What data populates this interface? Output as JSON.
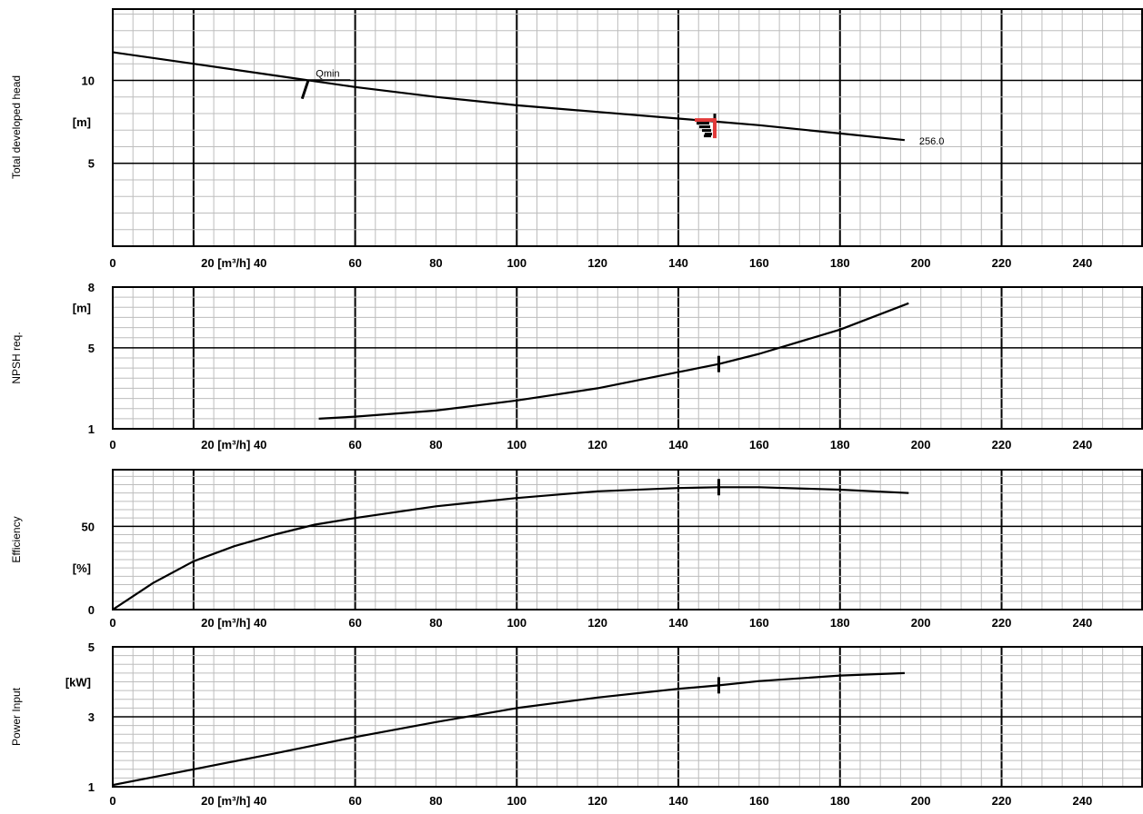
{
  "chart_data": [
    {
      "type": "line",
      "title": "Total developed head",
      "unit_label": "[m]",
      "y_ticks": [
        "10",
        "5"
      ],
      "ylim": [
        0,
        14.3
      ],
      "x_ticks": [
        "0",
        "20 [m³/h] 40",
        "60",
        "80",
        "100",
        "120",
        "140",
        "160",
        "180",
        "200",
        "220",
        "240"
      ],
      "xlim": [
        0,
        255
      ],
      "grid": true,
      "series": [
        {
          "name": "256.0",
          "x": [
            0,
            20,
            40,
            60,
            80,
            100,
            120,
            140,
            150,
            160,
            180,
            196
          ],
          "y": [
            11.7,
            11.0,
            10.3,
            9.6,
            9.0,
            8.5,
            8.1,
            7.7,
            7.5,
            7.3,
            6.8,
            6.4
          ]
        }
      ],
      "annotations": [
        {
          "text": "Qmin",
          "x": 48,
          "y": 9.55
        },
        {
          "text": "256.0",
          "x": 196,
          "y": 6.4
        }
      ],
      "operating_point": {
        "x": 149,
        "y": 7.5
      }
    },
    {
      "type": "line",
      "title": "NPSH req.",
      "unit_label": "[m]",
      "y_ticks": [
        "8",
        "5",
        "1"
      ],
      "ylim": [
        1,
        8
      ],
      "x_ticks": [
        "0",
        "20 [m³/h] 40",
        "60",
        "80",
        "100",
        "120",
        "140",
        "160",
        "180",
        "200",
        "220",
        "240"
      ],
      "xlim": [
        0,
        255
      ],
      "grid": true,
      "series": [
        {
          "name": "",
          "x": [
            51,
            60,
            80,
            100,
            120,
            140,
            150,
            160,
            180,
            197
          ],
          "y": [
            1.5,
            1.6,
            1.9,
            2.4,
            3.0,
            3.8,
            4.2,
            4.7,
            5.9,
            7.2
          ]
        }
      ],
      "operating_point": {
        "x": 150,
        "y": 4.2
      }
    },
    {
      "type": "line",
      "title": "Efficiency",
      "unit_label": "[%]",
      "y_ticks": [
        "50",
        "0"
      ],
      "ylim": [
        0,
        84
      ],
      "x_ticks": [
        "0",
        "20 [m³/h] 40",
        "60",
        "80",
        "100",
        "120",
        "140",
        "160",
        "180",
        "200",
        "220",
        "240"
      ],
      "xlim": [
        0,
        255
      ],
      "grid": true,
      "series": [
        {
          "name": "",
          "x": [
            0,
            10,
            20,
            30,
            40,
            50,
            60,
            80,
            100,
            120,
            140,
            150,
            160,
            180,
            197
          ],
          "y": [
            0,
            16,
            29,
            38,
            45,
            51,
            55,
            62,
            67,
            71,
            73,
            73.5,
            73.5,
            72,
            70
          ]
        }
      ],
      "operating_point": {
        "x": 150,
        "y": 73.5
      }
    },
    {
      "type": "line",
      "title": "Power Input",
      "unit_label": "[kW]",
      "y_ticks": [
        "5",
        "3",
        "1"
      ],
      "ylim": [
        1,
        5
      ],
      "x_ticks": [
        "0",
        "20 [m³/h] 40",
        "60",
        "80",
        "100",
        "120",
        "140",
        "160",
        "180",
        "200",
        "220",
        "240"
      ],
      "xlim": [
        0,
        255
      ],
      "grid": true,
      "series": [
        {
          "name": "",
          "x": [
            0,
            20,
            40,
            60,
            80,
            100,
            120,
            140,
            150,
            160,
            180,
            196
          ],
          "y": [
            1.05,
            1.5,
            1.95,
            2.42,
            2.85,
            3.25,
            3.55,
            3.8,
            3.9,
            4.02,
            4.18,
            4.25
          ]
        }
      ],
      "operating_point": {
        "x": 150,
        "y": 3.9
      }
    }
  ],
  "colors": {
    "curve": "#000000",
    "grid_minor": "#bdbdbd",
    "grid_major": "#000000",
    "operating_point_marker": "#e23a3a"
  }
}
